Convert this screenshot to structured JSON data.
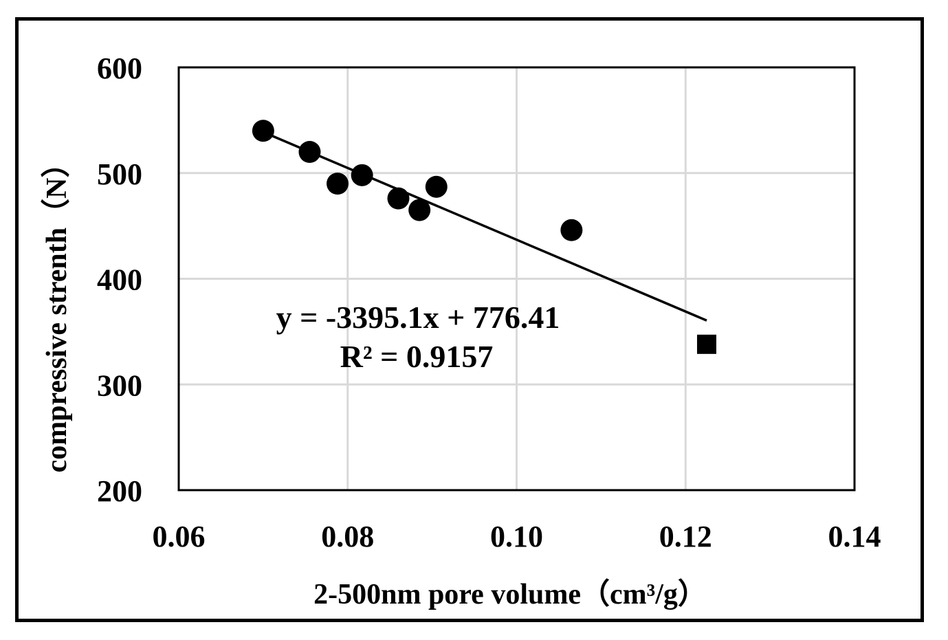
{
  "chart_data": {
    "type": "scatter",
    "xlabel": "2-500nm pore volume（cm³/g）",
    "ylabel": "compressive strenth（N）",
    "xlim": [
      0.06,
      0.14
    ],
    "ylim": [
      200,
      600
    ],
    "x_ticks": [
      "0.06",
      "0.08",
      "0.10",
      "0.12",
      "0.14"
    ],
    "y_ticks": [
      "200",
      "300",
      "400",
      "500",
      "600"
    ],
    "grid": true,
    "colors": {
      "marker": "#000000",
      "grid": "#d9d9d9",
      "trendline": "#000000"
    },
    "series": [
      {
        "marker": "circle",
        "points": [
          {
            "x": 0.07,
            "y": 540
          },
          {
            "x": 0.0755,
            "y": 520
          },
          {
            "x": 0.0788,
            "y": 490
          },
          {
            "x": 0.0817,
            "y": 498
          },
          {
            "x": 0.086,
            "y": 476
          },
          {
            "x": 0.0885,
            "y": 465
          },
          {
            "x": 0.0905,
            "y": 487
          },
          {
            "x": 0.1065,
            "y": 446
          }
        ]
      },
      {
        "marker": "square",
        "points": [
          {
            "x": 0.1225,
            "y": 338
          }
        ]
      }
    ],
    "trendline": {
      "slope": -3395.1,
      "intercept": 776.41,
      "x_range": [
        0.0705,
        0.1225
      ],
      "equation": "y = -3395.1x + 776.41",
      "r_squared": "R² = 0.9157"
    }
  }
}
